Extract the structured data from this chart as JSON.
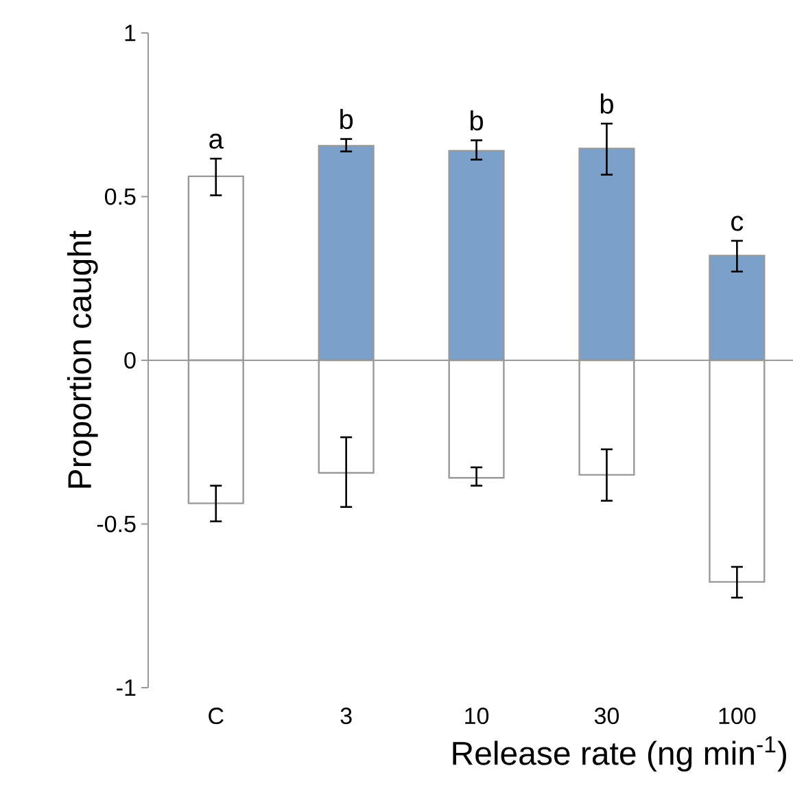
{
  "chart_data": {
    "type": "bar",
    "xlabel": "Release rate (ng min$^{-1}$)",
    "ylabel": "Proportion caught",
    "categories": [
      "C",
      "3",
      "10",
      "30",
      "100"
    ],
    "stacked": true,
    "series": [
      {
        "colors": [
          "#ffffff",
          "#7ba0c9",
          "#7ba0c9",
          "#7ba0c9",
          "#7ba0c9"
        ],
        "values": [
          0.562,
          0.655,
          0.64,
          0.647,
          0.32
        ],
        "errors": [
          [
            0.504,
            0.616
          ],
          [
            0.638,
            0.676
          ],
          [
            0.613,
            0.672
          ],
          [
            0.567,
            0.723
          ],
          [
            0.271,
            0.365
          ]
        ]
      },
      {
        "color": "#ffffff",
        "values": [
          -0.437,
          -0.344,
          -0.359,
          -0.35,
          -0.677
        ],
        "errors": [
          [
            -0.492,
            -0.383
          ],
          [
            -0.448,
            -0.235
          ],
          [
            -0.383,
            -0.327
          ],
          [
            -0.429,
            -0.272
          ],
          [
            -0.725,
            -0.631
          ]
        ]
      }
    ],
    "annotations": [
      "a",
      "b",
      "b",
      "b",
      "c"
    ],
    "ref_lines": [
      {
        "axis": "y",
        "value": 0,
        "color": "#999999"
      }
    ],
    "ylim": [
      -1,
      1
    ],
    "yticks": [
      -1,
      -0.5,
      0,
      0.5,
      1
    ]
  }
}
